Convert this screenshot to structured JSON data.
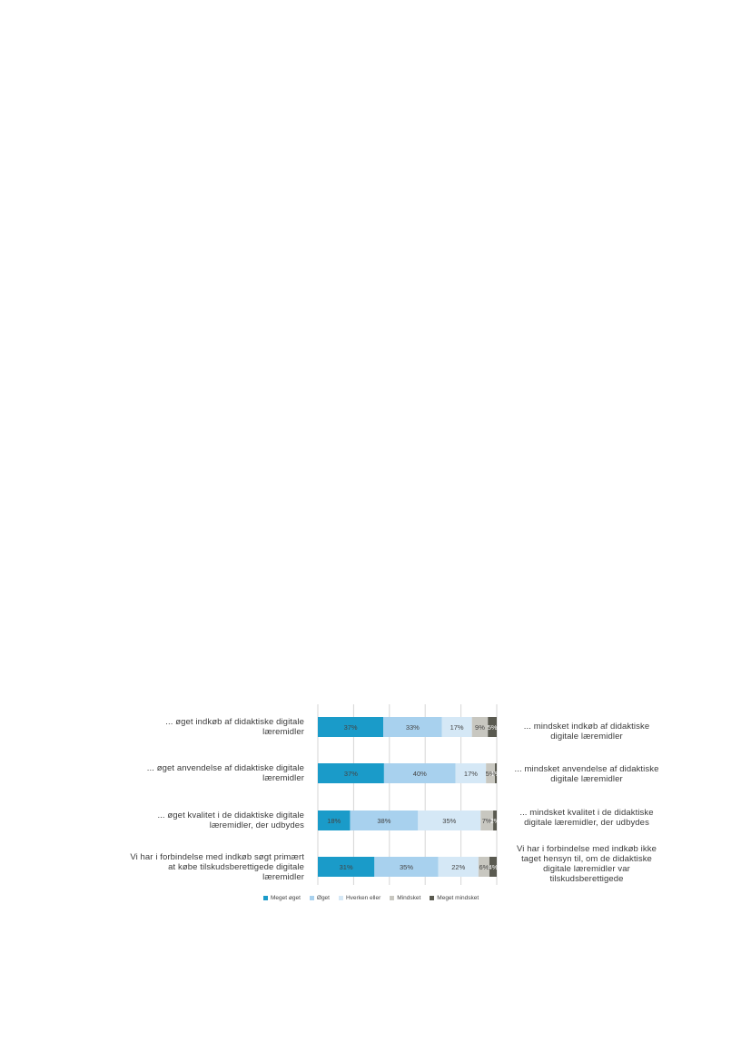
{
  "chart_data": {
    "type": "bar",
    "orientation": "horizontal",
    "stacked": true,
    "percent": true,
    "categories": [
      "... øget indkøb af didaktiske digitale læremidler",
      "... øget anvendelse af didaktiske digitale læremidler",
      "... øget kvalitet i de didaktiske digitale læremidler, der udbydes",
      "Vi har i forbindelse med indkøb søgt primært at købe tilskudsberettigede digitale læremidler"
    ],
    "left_labels": [
      [
        "... øget indkøb  af didaktiske  digitale",
        "læremidler"
      ],
      [
        "... øget anvendelse  af didaktiske  digitale",
        "læremidler"
      ],
      [
        "... øget kvalitet i de didaktiske  digitale",
        "læremidler,  der udbydes"
      ],
      [
        "Vi har i forbindelse med indkøb søgt primært",
        "at købe tilskudsberettigede digitale",
        "læremidler"
      ]
    ],
    "right_labels": [
      [
        "... mindsket  indkøb  af didaktiske",
        "digitale læremidler"
      ],
      [
        "... mindsket  anvendelse af didaktiske",
        "digitale læremidler"
      ],
      [
        "... mindsket  kvalitet i de didaktiske",
        "digitale læremidler,  der udbydes"
      ],
      [
        "Vi har i forbindelse med indkøb ikke",
        "taget hensyn til, om de didaktiske",
        "digitale læremidler var",
        "tilskudsberettigede"
      ]
    ],
    "series": [
      {
        "name": "Meget øget",
        "color": "#1a9bc9",
        "values": [
          37,
          37,
          18,
          31
        ],
        "labels": [
          "37%",
          "37%",
          "18%",
          "31%"
        ]
      },
      {
        "name": "Øget",
        "color": "#a8d1ee",
        "values": [
          33,
          40,
          38,
          35
        ],
        "labels": [
          "33%",
          "40%",
          "38%",
          "35%"
        ]
      },
      {
        "name": "Hverken eller",
        "color": "#d5e8f6",
        "values": [
          17,
          17,
          35,
          22
        ],
        "labels": [
          "17%",
          "17%",
          "35%",
          "22%"
        ]
      },
      {
        "name": "Mindsket",
        "color": "#c8c7c0",
        "values": [
          9,
          5,
          7,
          6
        ],
        "labels": [
          "9%",
          "5%",
          "7%",
          "6%"
        ]
      },
      {
        "name": "Meget mindsket",
        "color": "#5a5a50",
        "values": [
          5,
          1,
          2,
          4
        ],
        "labels": [
          "5%",
          "1%",
          "2%",
          "4%"
        ]
      }
    ],
    "xlim": [
      0,
      100
    ],
    "grid": true,
    "legend_position": "bottom"
  }
}
